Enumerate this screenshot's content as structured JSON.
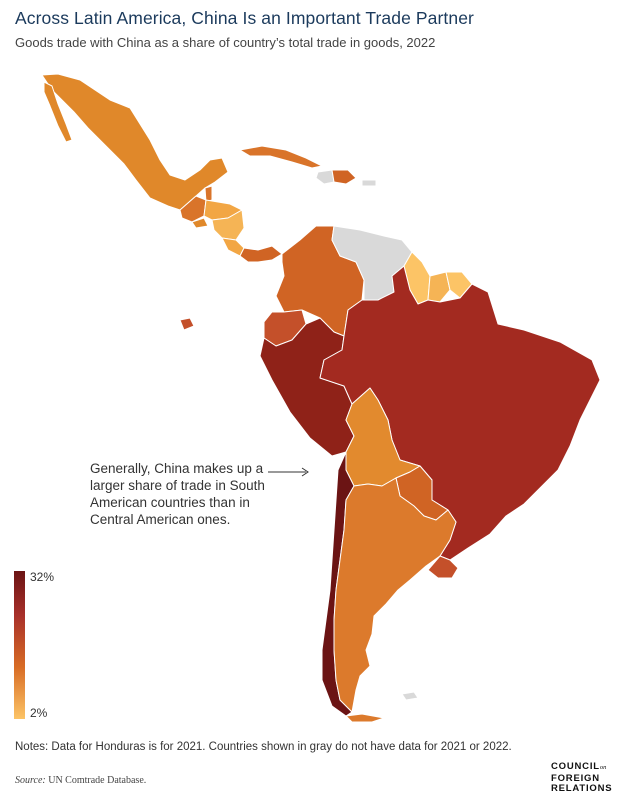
{
  "header": {
    "title": "Across Latin America, China Is an Important Trade Partner",
    "subtitle": "Goods trade with China as a share of country’s total trade in goods, 2022"
  },
  "annotation": {
    "text": "Generally, China makes up a larger share of trade in South American countries than in Central American ones."
  },
  "legend": {
    "max_label": "32%",
    "min_label": "2%",
    "scale_max": 32,
    "scale_min": 2,
    "color_high": "#6b1414",
    "color_mid": "#d86c25",
    "color_low": "#fcc466",
    "no_data_color": "#d9d9d9"
  },
  "footer": {
    "notes": "Notes: Data for Honduras is for 2021. Countries shown in gray do not have data for 2021 or 2022.",
    "source_label": "Source:",
    "source_text": "UN Comtrade Database.",
    "logo_line1": "COUNCIL",
    "logo_on": "on",
    "logo_line2": "FOREIGN",
    "logo_line3": "RELATIONS"
  },
  "regions": [
    {
      "name": "Mexico",
      "color": "#e0882a"
    },
    {
      "name": "Guatemala",
      "color": "#d9742a"
    },
    {
      "name": "Belize",
      "color": "#d9742a"
    },
    {
      "name": "Honduras",
      "color": "#f2a644"
    },
    {
      "name": "El Salvador",
      "color": "#e0882a"
    },
    {
      "name": "Nicaragua",
      "color": "#f5b455"
    },
    {
      "name": "Costa Rica",
      "color": "#f2a644"
    },
    {
      "name": "Panama",
      "color": "#d06424"
    },
    {
      "name": "Cuba",
      "color": "#d9742a"
    },
    {
      "name": "Haiti",
      "color": "#d9d9d9"
    },
    {
      "name": "Dominican Republic",
      "color": "#d06424"
    },
    {
      "name": "Colombia",
      "color": "#d06424"
    },
    {
      "name": "Venezuela",
      "color": "#d9d9d9"
    },
    {
      "name": "Guyana",
      "color": "#fcc466"
    },
    {
      "name": "Suriname",
      "color": "#f5b455"
    },
    {
      "name": "French Guiana",
      "color": "#fcc466"
    },
    {
      "name": "Ecuador",
      "color": "#c4502a"
    },
    {
      "name": "Peru",
      "color": "#8f2218"
    },
    {
      "name": "Brazil",
      "color": "#a32a20"
    },
    {
      "name": "Bolivia",
      "color": "#e28a2e"
    },
    {
      "name": "Paraguay",
      "color": "#d06424"
    },
    {
      "name": "Chile",
      "color": "#6b1414"
    },
    {
      "name": "Argentina",
      "color": "#dc7a2c"
    },
    {
      "name": "Uruguay",
      "color": "#c4502a"
    }
  ]
}
